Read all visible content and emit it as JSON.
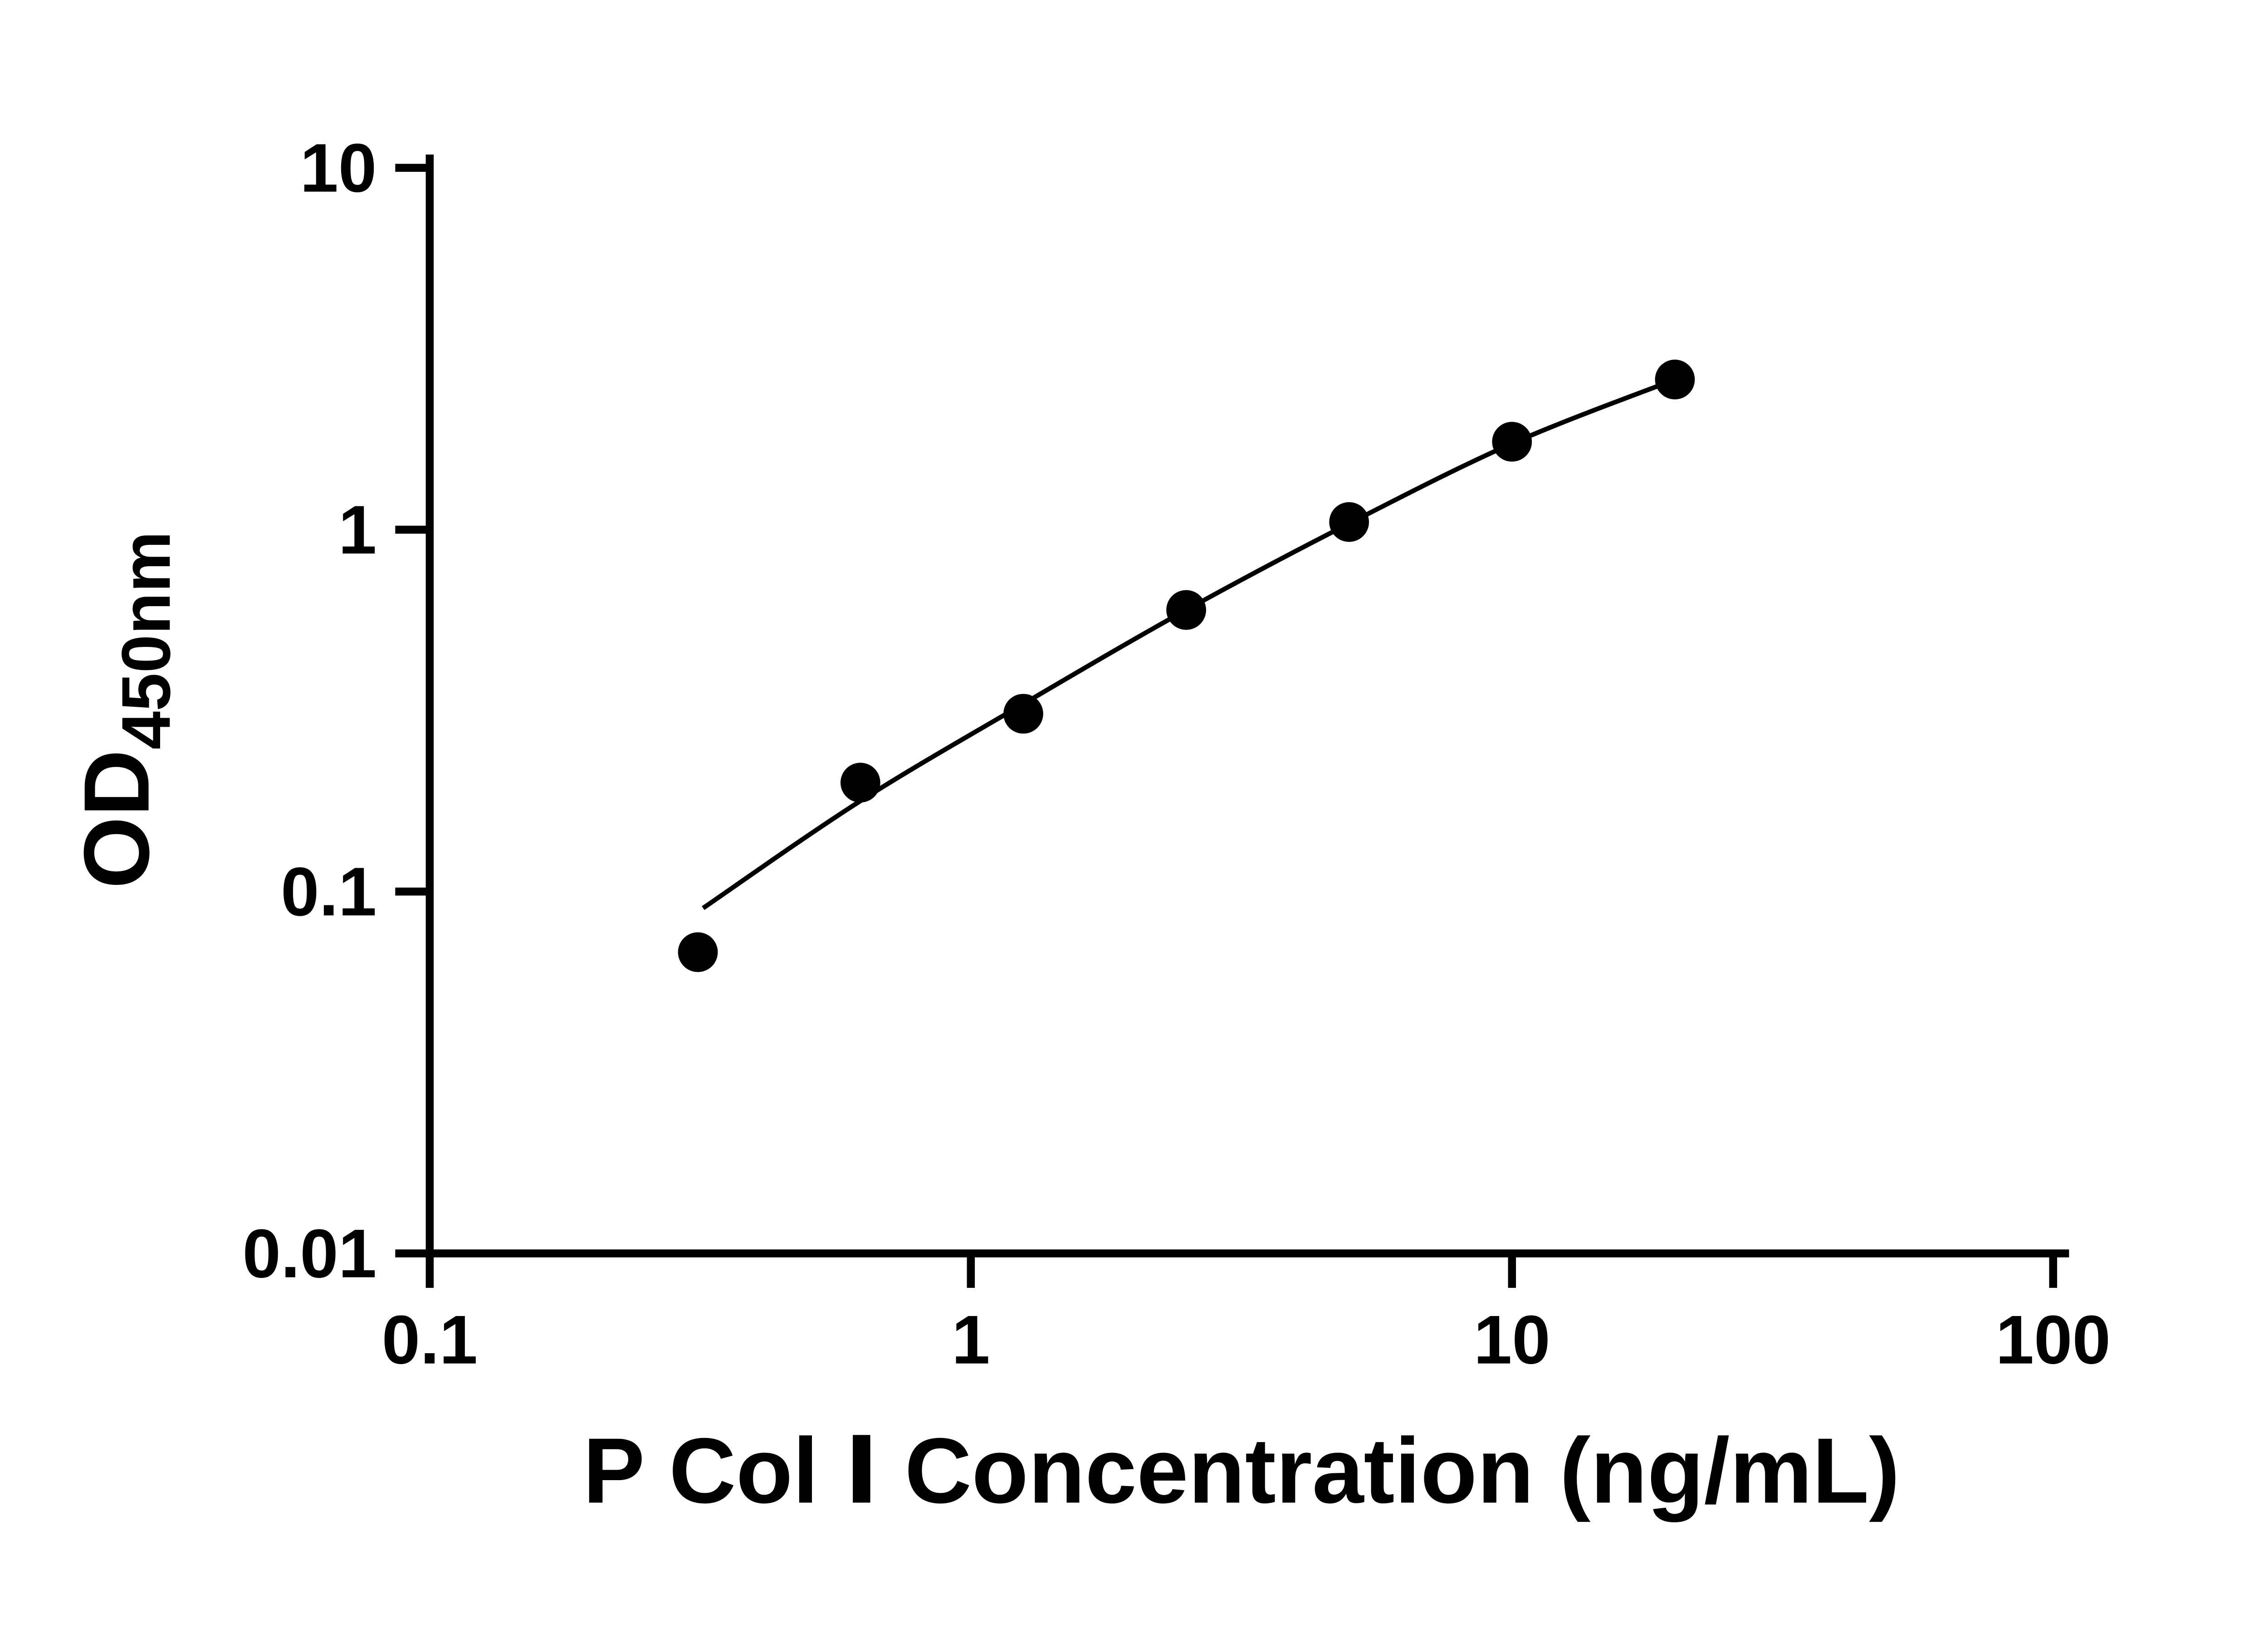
{
  "figure": {
    "background": "#ffffff"
  },
  "chart_data": {
    "type": "scatter",
    "title": "",
    "xlabel": "P Col Ⅰ Concentration (ng/mL)",
    "ylabel": "OD450nm",
    "ylabel_parts": {
      "main": "OD",
      "sub": "450nm"
    },
    "x_scale": "log10",
    "y_scale": "log10",
    "xlim": [
      0.1,
      100
    ],
    "ylim": [
      0.01,
      10
    ],
    "x_ticks": [
      0.1,
      1,
      10,
      100
    ],
    "x_tick_labels": [
      "0.1",
      "1",
      "10",
      "100"
    ],
    "y_ticks": [
      0.01,
      0.1,
      1,
      10
    ],
    "y_tick_labels": [
      "0.01",
      "0.1",
      "1",
      "10"
    ],
    "grid": false,
    "legend": "none",
    "axis_color": "#000000",
    "marker_color": "#000000",
    "line_color": "#000000",
    "points": [
      {
        "x": 0.313,
        "y": 0.068
      },
      {
        "x": 0.625,
        "y": 0.2
      },
      {
        "x": 1.25,
        "y": 0.31
      },
      {
        "x": 2.5,
        "y": 0.6
      },
      {
        "x": 5,
        "y": 1.05
      },
      {
        "x": 10,
        "y": 1.75
      },
      {
        "x": 20,
        "y": 2.6
      }
    ],
    "fit_curve_points": [
      {
        "x": 0.32,
        "y": 0.09
      },
      {
        "x": 0.625,
        "y": 0.178
      },
      {
        "x": 1.25,
        "y": 0.33
      },
      {
        "x": 2.5,
        "y": 0.6
      },
      {
        "x": 5,
        "y": 1.04
      },
      {
        "x": 10,
        "y": 1.73
      },
      {
        "x": 20,
        "y": 2.6
      }
    ]
  }
}
